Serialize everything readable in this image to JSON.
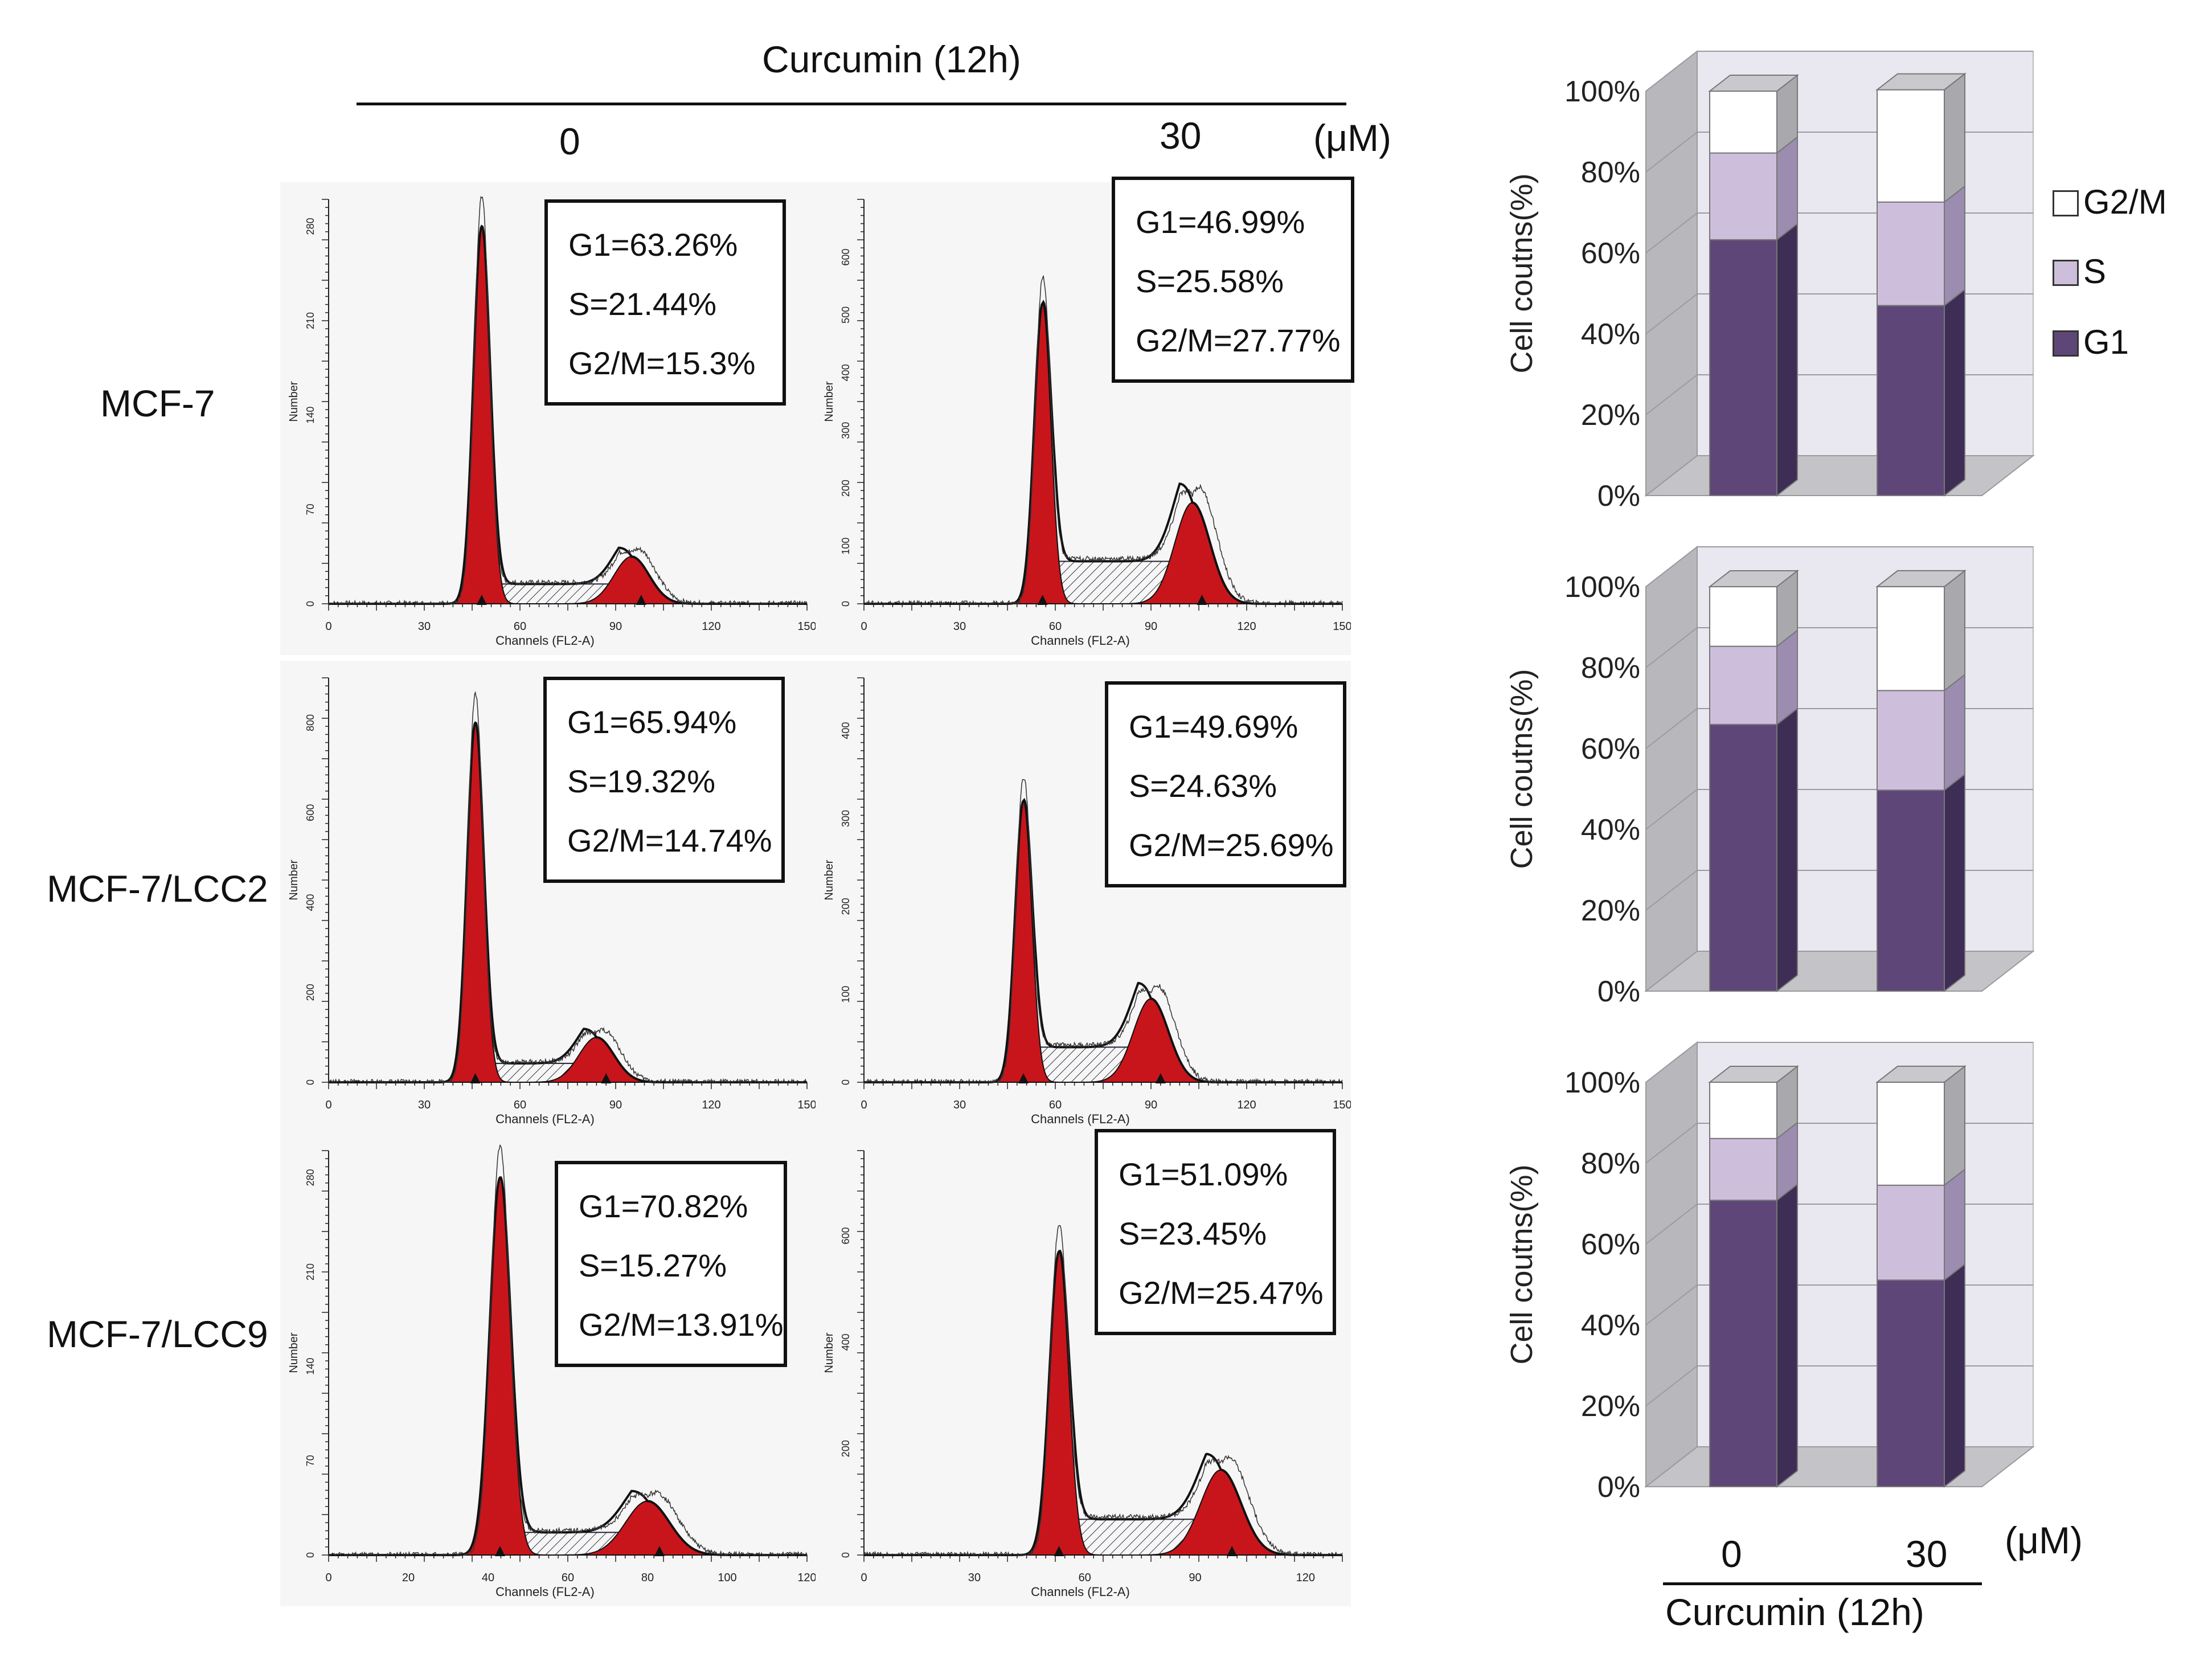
{
  "header": {
    "treatment": "Curcumin (12h)",
    "conc_zero": "0",
    "conc_thirty": "30",
    "unit": "(μM)"
  },
  "rows": [
    {
      "label": "MCF-7"
    },
    {
      "label": "MCF-7/LCC2"
    },
    {
      "label": "MCF-7/LCC9"
    }
  ],
  "histogram_axis": {
    "ylabel": "Number",
    "xlabel": "Channels (FL2-A)"
  },
  "histograms": [
    {
      "row": 0,
      "conc": "0",
      "xmax": 150,
      "xticks": [
        "0",
        "30",
        "60",
        "90",
        "120",
        "150"
      ],
      "yticks": [
        "0",
        "70",
        "140",
        "210",
        "280"
      ],
      "ymax": 300,
      "g1_peak": 48,
      "g2_peak": 95,
      "g1_height": 280,
      "g2_height": 35,
      "stats": [
        "G1=63.26%",
        "S=21.44%",
        "G2/M=15.3%"
      ]
    },
    {
      "row": 0,
      "conc": "30",
      "xmax": 150,
      "xticks": [
        "0",
        "30",
        "60",
        "90",
        "120",
        "150"
      ],
      "yticks": [
        "0",
        "100",
        "200",
        "300",
        "400",
        "500",
        "600"
      ],
      "ymax": 700,
      "g1_peak": 56,
      "g2_peak": 103,
      "g1_height": 520,
      "g2_height": 175,
      "stats": [
        "G1=46.99%",
        "S=25.58%",
        "G2/M=27.77%"
      ]
    },
    {
      "row": 1,
      "conc": "0",
      "xmax": 150,
      "xticks": [
        "0",
        "30",
        "60",
        "90",
        "120",
        "150"
      ],
      "yticks": [
        "0",
        "200",
        "400",
        "600",
        "800"
      ],
      "ymax": 900,
      "g1_peak": 46,
      "g2_peak": 84,
      "g1_height": 800,
      "g2_height": 100,
      "stats": [
        "G1=65.94%",
        "S=19.32%",
        "G2/M=14.74%"
      ]
    },
    {
      "row": 1,
      "conc": "30",
      "xmax": 150,
      "xticks": [
        "0",
        "30",
        "60",
        "90",
        "120",
        "150"
      ],
      "yticks": [
        "0",
        "100",
        "200",
        "300",
        "400"
      ],
      "ymax": 460,
      "g1_peak": 50,
      "g2_peak": 90,
      "g1_height": 320,
      "g2_height": 95,
      "stats": [
        "G1=49.69%",
        "S=24.63%",
        "G2/M=25.69%"
      ]
    },
    {
      "row": 2,
      "conc": "0",
      "xmax": 120,
      "xticks": [
        "0",
        "20",
        "40",
        "60",
        "80",
        "100",
        "120"
      ],
      "yticks": [
        "0",
        "70",
        "140",
        "210",
        "280"
      ],
      "ymax": 300,
      "g1_peak": 43,
      "g2_peak": 80,
      "g1_height": 280,
      "g2_height": 40,
      "stats": [
        "G1=70.82%",
        "S=15.27%",
        "G2/M=13.91%"
      ]
    },
    {
      "row": 2,
      "conc": "30",
      "xmax": 130,
      "xticks": [
        "0",
        "30",
        "60",
        "90",
        "120"
      ],
      "yticks": [
        "0",
        "200",
        "400",
        "600"
      ],
      "ymax": 760,
      "g1_peak": 53,
      "g2_peak": 97,
      "g1_height": 570,
      "g2_height": 160,
      "stats": [
        "G1=51.09%",
        "S=23.45%",
        "G2/M=25.47%"
      ]
    }
  ],
  "chart_data": {
    "type": "bar",
    "stacked": true,
    "title": "",
    "ylabel": "Cell coutns(%)",
    "yticks": [
      "0%",
      "20%",
      "40%",
      "60%",
      "80%",
      "100%"
    ],
    "ylim": [
      0,
      100
    ],
    "xlabel": "Curcumin (12h)",
    "categories": [
      "0",
      "30"
    ],
    "unit": "(μM)",
    "legend": [
      "G2/M",
      "S",
      "G1"
    ],
    "colors": {
      "G1": "#5e4778",
      "S": "#cdbfdc",
      "G2/M": "#ffffff"
    },
    "charts": [
      {
        "cell_line": "MCF-7",
        "G1": [
          63.26,
          46.99
        ],
        "S": [
          21.44,
          25.58
        ],
        "G2/M": [
          15.3,
          27.77
        ]
      },
      {
        "cell_line": "MCF-7/LCC2",
        "G1": [
          65.94,
          49.69
        ],
        "S": [
          19.32,
          24.63
        ],
        "G2/M": [
          14.74,
          25.69
        ]
      },
      {
        "cell_line": "MCF-7/LCC9",
        "G1": [
          70.82,
          51.09
        ],
        "S": [
          15.27,
          23.45
        ],
        "G2/M": [
          13.91,
          25.47
        ]
      }
    ]
  }
}
